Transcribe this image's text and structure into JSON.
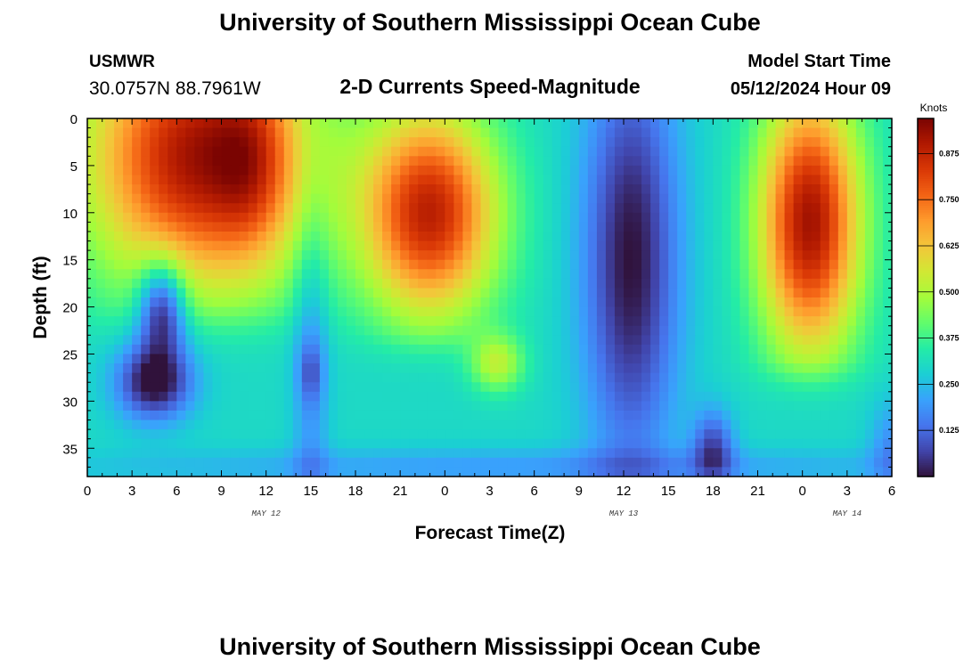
{
  "header": {
    "title": "University of Southern Mississippi Ocean Cube",
    "station": "USMWR",
    "coordinates": "30.0757N  88.7961W",
    "subtitle": "2-D Currents Speed-Magnitude",
    "model_start_label": "Model Start Time",
    "model_start_value": "05/12/2024 Hour 09"
  },
  "footer": {
    "title": "University of Southern Mississippi Ocean Cube"
  },
  "chart_data": {
    "type": "heatmap",
    "xlabel": "Forecast Time(Z)",
    "ylabel": "Depth (ft)",
    "colorbar_label": "Knots",
    "x_range_hours": [
      0,
      54
    ],
    "y_range": [
      0,
      38
    ],
    "y_inverted": true,
    "x_ticks": [
      {
        "hour": 0,
        "label": "0"
      },
      {
        "hour": 3,
        "label": "3"
      },
      {
        "hour": 6,
        "label": "6"
      },
      {
        "hour": 9,
        "label": "9"
      },
      {
        "hour": 12,
        "label": "12"
      },
      {
        "hour": 15,
        "label": "15"
      },
      {
        "hour": 18,
        "label": "18"
      },
      {
        "hour": 21,
        "label": "21"
      },
      {
        "hour": 24,
        "label": "0"
      },
      {
        "hour": 27,
        "label": "3"
      },
      {
        "hour": 30,
        "label": "6"
      },
      {
        "hour": 33,
        "label": "9"
      },
      {
        "hour": 36,
        "label": "12"
      },
      {
        "hour": 39,
        "label": "15"
      },
      {
        "hour": 42,
        "label": "18"
      },
      {
        "hour": 45,
        "label": "21"
      },
      {
        "hour": 48,
        "label": "0"
      },
      {
        "hour": 51,
        "label": "3"
      },
      {
        "hour": 54,
        "label": "6"
      }
    ],
    "date_labels": [
      {
        "hour": 12,
        "label": "MAY 12"
      },
      {
        "hour": 36,
        "label": "MAY 13"
      },
      {
        "hour": 51,
        "label": "MAY 14"
      }
    ],
    "y_ticks": [
      0,
      5,
      10,
      15,
      20,
      25,
      30,
      35
    ],
    "colorbar_ticks": [
      "0.875",
      "0.750",
      "0.625",
      "0.500",
      "0.375",
      "0.250",
      "0.125"
    ],
    "colorbar_tick_values": [
      0.875,
      0.75,
      0.625,
      0.5,
      0.375,
      0.25,
      0.125
    ],
    "colorbar_range": [
      0,
      0.97
    ],
    "colorscale": [
      "#30123b",
      "#4145ab",
      "#4675ed",
      "#39a2fc",
      "#1bcfd4",
      "#24eca6",
      "#61fc6c",
      "#a4fc3b",
      "#d1e834",
      "#f3c63a",
      "#fe9b2d",
      "#f36315",
      "#d93806",
      "#b11901",
      "#7a0402"
    ],
    "field_summary": [
      {
        "time_hours": [
          0,
          9
        ],
        "depth_ft": [
          0,
          20
        ],
        "speed_knots": 0.85
      },
      {
        "time_hours": [
          9,
          13.5
        ],
        "depth_ft": [
          0,
          20
        ],
        "speed_knots": 0.95
      },
      {
        "time_hours": [
          4,
          6
        ],
        "depth_ft": [
          25,
          29
        ],
        "speed_knots": 0.03
      },
      {
        "time_hours": [
          14.5,
          19
        ],
        "depth_ft": [
          0,
          38
        ],
        "speed_knots": 0.3
      },
      {
        "time_hours": [
          19.5,
          27
        ],
        "depth_ft": [
          0,
          22
        ],
        "speed_knots": 0.85
      },
      {
        "time_hours": [
          34,
          39
        ],
        "depth_ft": [
          0,
          30
        ],
        "speed_knots": 0.05
      },
      {
        "time_hours": [
          41,
          43
        ],
        "depth_ft": [
          31,
          38
        ],
        "speed_knots": 0.05
      },
      {
        "time_hours": [
          45.5,
          51
        ],
        "depth_ft": [
          0,
          27
        ],
        "speed_knots": 0.85
      }
    ]
  }
}
